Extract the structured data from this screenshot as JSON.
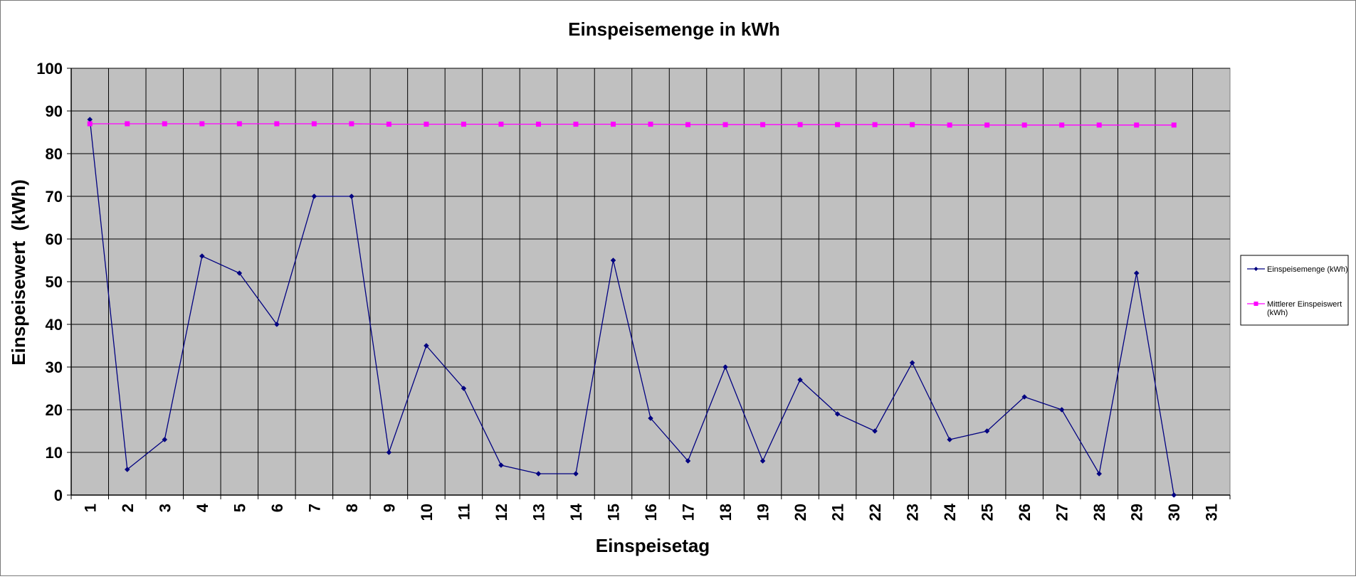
{
  "chart_data": {
    "type": "line",
    "title": "Einspeisemenge in kWh",
    "xlabel": "Einspeisetag",
    "ylabel": "Einspeisewert  (kWh)",
    "ylim": [
      0,
      100
    ],
    "yticks": [
      "0",
      "10",
      "20",
      "30",
      "40",
      "50",
      "60",
      "70",
      "80",
      "90",
      "100"
    ],
    "categories": [
      "1",
      "2",
      "3",
      "4",
      "5",
      "6",
      "7",
      "8",
      "9",
      "10",
      "11",
      "12",
      "13",
      "14",
      "15",
      "16",
      "17",
      "18",
      "19",
      "20",
      "21",
      "22",
      "23",
      "24",
      "25",
      "26",
      "27",
      "28",
      "29",
      "30",
      "31"
    ],
    "grid": true,
    "legend_position": "right",
    "plot_background": "#c0c0c0",
    "series": [
      {
        "name": "Einspeisemenge (kWh)",
        "color": "#000080",
        "marker": "diamond",
        "values": [
          88,
          6,
          13,
          56,
          52,
          40,
          70,
          70,
          10,
          35,
          25,
          7,
          5,
          5,
          55,
          18,
          8,
          30,
          8,
          27,
          19,
          15,
          31,
          13,
          15,
          23,
          20,
          5,
          52,
          0,
          null
        ]
      },
      {
        "name": "Mittlerer Einspeiswert (kWh)",
        "color": "#ff00ff",
        "marker": "square",
        "values": [
          87.0,
          87.0,
          87.0,
          87.0,
          87.0,
          87.0,
          87.0,
          87.0,
          86.9,
          86.9,
          86.9,
          86.9,
          86.9,
          86.9,
          86.9,
          86.9,
          86.8,
          86.8,
          86.8,
          86.8,
          86.8,
          86.8,
          86.8,
          86.7,
          86.7,
          86.7,
          86.7,
          86.7,
          86.7,
          86.7,
          null
        ]
      }
    ]
  }
}
